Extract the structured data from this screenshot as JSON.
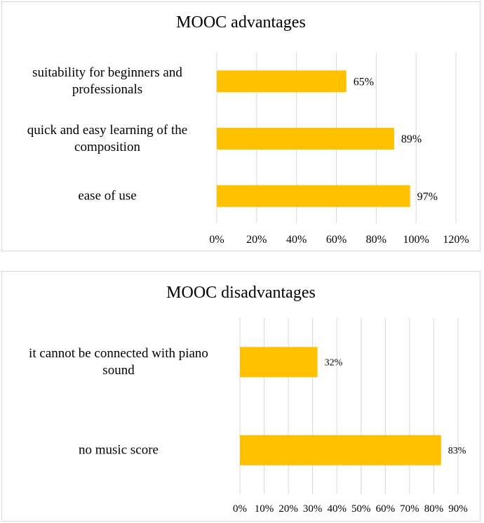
{
  "chart_data": [
    {
      "type": "bar",
      "orientation": "horizontal",
      "title": "MOOC advantages",
      "categories": [
        "suitability for beginners and professionals",
        "quick and easy learning of the composition",
        "ease of use"
      ],
      "category_lines": [
        [
          "suitability for beginners and",
          "professionals"
        ],
        [
          "quick and easy learning of the",
          "composition"
        ],
        [
          "ease of use"
        ]
      ],
      "values": [
        65,
        89,
        97
      ],
      "data_labels": [
        "65%",
        "89%",
        "97%"
      ],
      "xlim": [
        0,
        120
      ],
      "xticks": [
        0,
        20,
        40,
        60,
        80,
        100,
        120
      ],
      "xtick_labels": [
        "0%",
        "20%",
        "40%",
        "60%",
        "80%",
        "100%",
        "120%"
      ],
      "xlabel": "",
      "ylabel": "",
      "grid": true,
      "legend": "none",
      "bar_color": "#ffc000",
      "grid_color": "#d9d9d9"
    },
    {
      "type": "bar",
      "orientation": "horizontal",
      "title": "MOOC disadvantages",
      "categories": [
        "it cannot be connected with piano sound",
        "no music score"
      ],
      "category_lines": [
        [
          "it cannot be connected with piano",
          "sound"
        ],
        [
          "no music score"
        ]
      ],
      "values": [
        32,
        83
      ],
      "data_labels": [
        "32%",
        "83%"
      ],
      "xlim": [
        0,
        90
      ],
      "xticks": [
        0,
        10,
        20,
        30,
        40,
        50,
        60,
        70,
        80,
        90
      ],
      "xtick_labels": [
        "0%",
        "10%",
        "20%",
        "30%",
        "40%",
        "50%",
        "60%",
        "70%",
        "80%",
        "90%"
      ],
      "xlabel": "",
      "ylabel": "",
      "grid": true,
      "legend": "none",
      "bar_color": "#ffc000",
      "grid_color": "#d9d9d9"
    }
  ]
}
